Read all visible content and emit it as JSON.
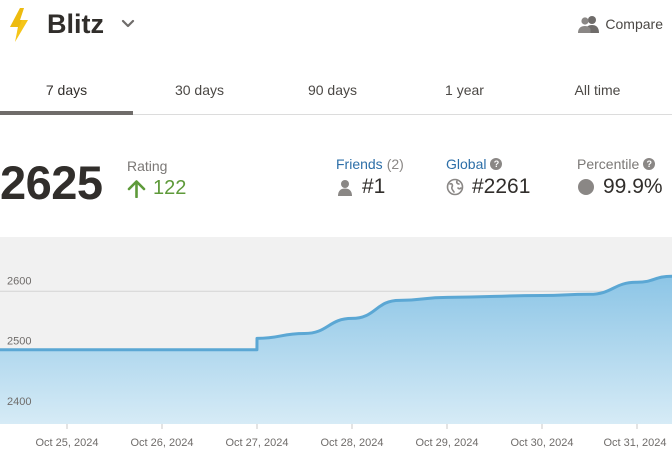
{
  "header": {
    "title": "Blitz",
    "compare_label": "Compare"
  },
  "tabs": [
    {
      "label": "7 days",
      "active": true
    },
    {
      "label": "30 days",
      "active": false
    },
    {
      "label": "90 days",
      "active": false
    },
    {
      "label": "1 year",
      "active": false
    },
    {
      "label": "All time",
      "active": false
    }
  ],
  "stats": {
    "rating": "2625",
    "rating_label": "Rating",
    "rating_change": "122",
    "friends_label": "Friends",
    "friends_count": "(2)",
    "friends_rank": "#1",
    "global_label": "Global",
    "global_rank": "#2261",
    "percentile_label": "Percentile",
    "percentile_value": "99.9%"
  },
  "colors": {
    "accent_blue": "#2d6fa8",
    "positive_green": "#5e9a3a",
    "bolt_yellow": "#f5c518",
    "chart_line": "#5ba7d4",
    "chart_fill_top": "#8cc5e6",
    "chart_fill_bottom": "#d6ebf6"
  },
  "chart_data": {
    "type": "area",
    "x": [
      "Oct 24, 2024 12:00",
      "Oct 25, 2024 00:00",
      "Oct 26, 2024 00:00",
      "Oct 26, 2024 23:59",
      "Oct 27, 2024 00:00",
      "Oct 27, 2024 12:00",
      "Oct 28, 2024 00:00",
      "Oct 28, 2024 12:00",
      "Oct 29, 2024 00:00",
      "Oct 30, 2024 00:00",
      "Oct 30, 2024 12:00",
      "Oct 31, 2024 00:00",
      "Oct 31, 2024 06:00"
    ],
    "values": [
      2503,
      2503,
      2503,
      2503,
      2522,
      2530,
      2555,
      2585,
      2590,
      2593,
      2595,
      2615,
      2625
    ],
    "x_tick_labels": [
      "Oct 25, 2024",
      "Oct 26, 2024",
      "Oct 27, 2024",
      "Oct 28, 2024",
      "Oct 29, 2024",
      "Oct 30, 2024",
      "Oct 31, 2024"
    ],
    "y_tick_labels": [
      "2600",
      "2500",
      "2400"
    ],
    "y_ticks": [
      2600,
      2500,
      2400
    ],
    "ylim": [
      2380,
      2690
    ],
    "grid": true,
    "legend": "none"
  }
}
